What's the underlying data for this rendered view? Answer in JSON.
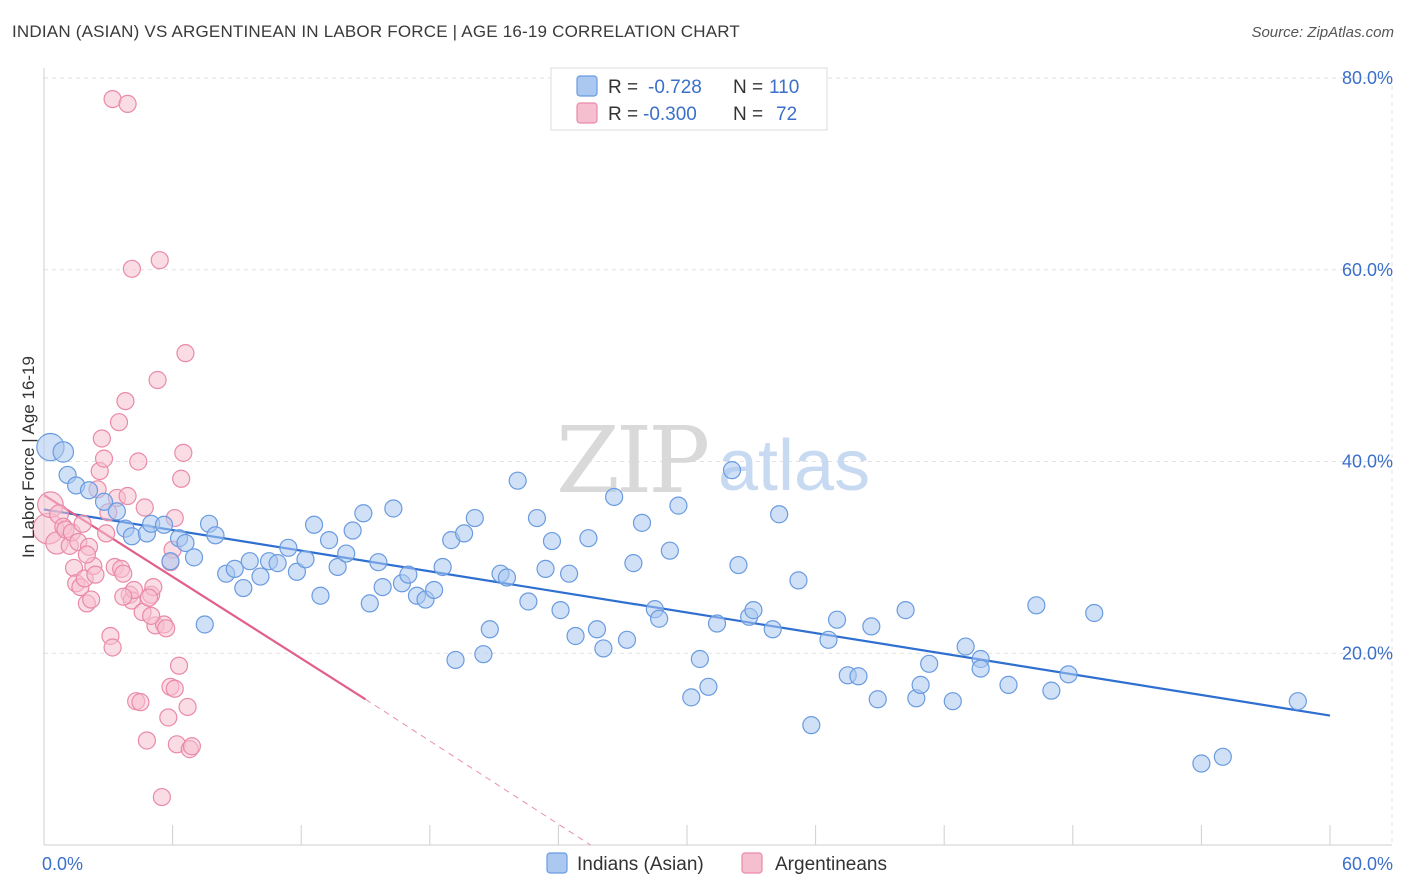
{
  "header": {
    "title": "INDIAN (ASIAN) VS ARGENTINEAN IN LABOR FORCE | AGE 16-19 CORRELATION CHART",
    "source": "Source: ZipAtlas.com"
  },
  "watermark": {
    "zip": "ZIP",
    "atlas": "atlas"
  },
  "chart_data": {
    "type": "scatter",
    "title": "INDIAN (ASIAN) VS ARGENTINEAN IN LABOR FORCE | AGE 16-19 CORRELATION CHART",
    "xlabel": "",
    "ylabel": "In Labor Force | Age 16-19",
    "xlim": [
      0,
      60
    ],
    "ylim": [
      0,
      80
    ],
    "x_tick_labels": [
      "0.0%",
      "60.0%"
    ],
    "y_ticks": [
      20,
      40,
      60,
      80
    ],
    "y_tick_labels": [
      "20.0%",
      "40.0%",
      "60.0%",
      "80.0%"
    ],
    "grid": true,
    "legend": {
      "placement": "top-center",
      "entries": [
        {
          "r_label": "R = ",
          "r_value": "-0.728",
          "n_label": "N = ",
          "n_value": "110"
        },
        {
          "r_label": "R = ",
          "r_value": "-0.300",
          "n_label": "N = ",
          "n_value": " 72"
        }
      ]
    },
    "bottom_legend": [
      "Indians (Asian)",
      "Argentineans"
    ],
    "colors": {
      "indians": "#6a9be0",
      "indians_fill": "#aac8f0",
      "indians_line": "#2f6fd0",
      "argentineans": "#ea8aa8",
      "argentineans_fill": "#f5bfd0",
      "argentineans_line": "#e0608a",
      "axis_text": "#3b6fc9"
    },
    "series": [
      {
        "name": "Indians (Asian)",
        "trend": {
          "x": [
            0.0,
            60.0
          ],
          "y": [
            35.0,
            13.5
          ]
        },
        "points": [
          [
            0.3,
            41.5,
            1.6
          ],
          [
            0.9,
            41.0,
            1.2
          ],
          [
            1.1,
            38.6,
            1
          ],
          [
            1.5,
            37.5,
            1
          ],
          [
            2.1,
            37.0,
            1
          ],
          [
            2.8,
            35.8,
            1
          ],
          [
            3.4,
            34.8,
            1
          ],
          [
            3.8,
            33.0,
            1
          ],
          [
            4.1,
            32.2,
            1
          ],
          [
            4.8,
            32.5,
            1
          ],
          [
            5.0,
            33.5,
            1
          ],
          [
            5.6,
            33.4,
            1
          ],
          [
            5.9,
            29.6,
            1
          ],
          [
            6.3,
            32.0,
            1
          ],
          [
            6.6,
            31.5,
            1
          ],
          [
            7.0,
            30.0,
            1
          ],
          [
            7.5,
            23.0,
            1
          ],
          [
            7.7,
            33.5,
            1
          ],
          [
            8.0,
            32.3,
            1
          ],
          [
            8.5,
            28.3,
            1
          ],
          [
            8.9,
            28.8,
            1
          ],
          [
            9.3,
            26.8,
            1
          ],
          [
            9.6,
            29.6,
            1
          ],
          [
            10.1,
            28.0,
            1
          ],
          [
            10.5,
            29.6,
            1
          ],
          [
            10.9,
            29.4,
            1
          ],
          [
            11.4,
            31.0,
            1
          ],
          [
            11.8,
            28.5,
            1
          ],
          [
            12.2,
            29.8,
            1
          ],
          [
            12.6,
            33.4,
            1
          ],
          [
            12.9,
            26.0,
            1
          ],
          [
            13.3,
            31.8,
            1
          ],
          [
            13.7,
            29.0,
            1
          ],
          [
            14.1,
            30.4,
            1
          ],
          [
            14.4,
            32.8,
            1
          ],
          [
            14.9,
            34.6,
            1
          ],
          [
            15.2,
            25.2,
            1
          ],
          [
            15.6,
            29.5,
            1
          ],
          [
            15.8,
            26.9,
            1
          ],
          [
            16.3,
            35.1,
            1
          ],
          [
            16.7,
            27.3,
            1
          ],
          [
            17.0,
            28.2,
            1
          ],
          [
            17.4,
            26.0,
            1
          ],
          [
            17.8,
            25.6,
            1
          ],
          [
            18.2,
            26.6,
            1
          ],
          [
            18.6,
            29.0,
            1
          ],
          [
            19.0,
            31.8,
            1
          ],
          [
            19.2,
            19.3,
            1
          ],
          [
            19.6,
            32.5,
            1
          ],
          [
            20.1,
            34.1,
            1
          ],
          [
            20.5,
            19.9,
            1
          ],
          [
            20.8,
            22.5,
            1
          ],
          [
            21.3,
            28.3,
            1
          ],
          [
            21.6,
            27.9,
            1
          ],
          [
            22.1,
            38.0,
            1
          ],
          [
            22.6,
            25.4,
            1
          ],
          [
            23.0,
            34.1,
            1
          ],
          [
            23.4,
            28.8,
            1
          ],
          [
            23.7,
            31.7,
            1
          ],
          [
            24.1,
            24.5,
            1
          ],
          [
            24.5,
            28.3,
            1
          ],
          [
            24.8,
            21.8,
            1
          ],
          [
            25.4,
            32.0,
            1
          ],
          [
            25.8,
            22.5,
            1
          ],
          [
            26.1,
            20.5,
            1
          ],
          [
            26.6,
            36.3,
            1
          ],
          [
            27.2,
            21.4,
            1
          ],
          [
            27.5,
            29.4,
            1
          ],
          [
            27.9,
            33.6,
            1
          ],
          [
            28.5,
            24.6,
            1
          ],
          [
            28.7,
            23.6,
            1
          ],
          [
            29.2,
            30.7,
            1
          ],
          [
            29.6,
            35.4,
            1
          ],
          [
            30.2,
            15.4,
            1
          ],
          [
            30.6,
            19.4,
            1
          ],
          [
            31.0,
            16.5,
            1
          ],
          [
            31.4,
            23.1,
            1
          ],
          [
            32.1,
            39.1,
            1
          ],
          [
            32.4,
            29.2,
            1
          ],
          [
            32.9,
            23.8,
            1
          ],
          [
            33.1,
            24.5,
            1
          ],
          [
            34.0,
            22.5,
            1
          ],
          [
            34.3,
            34.5,
            1
          ],
          [
            35.2,
            27.6,
            1
          ],
          [
            35.8,
            12.5,
            1
          ],
          [
            36.6,
            21.4,
            1
          ],
          [
            37.0,
            23.5,
            1
          ],
          [
            37.5,
            17.7,
            1
          ],
          [
            38.0,
            17.6,
            1
          ],
          [
            38.6,
            22.8,
            1
          ],
          [
            38.9,
            15.2,
            1
          ],
          [
            40.2,
            24.5,
            1
          ],
          [
            40.7,
            15.3,
            1
          ],
          [
            40.9,
            16.7,
            1
          ],
          [
            41.3,
            18.9,
            1
          ],
          [
            42.4,
            15.0,
            1
          ],
          [
            43.0,
            20.7,
            1
          ],
          [
            43.7,
            19.4,
            1
          ],
          [
            43.7,
            18.4,
            1
          ],
          [
            45.0,
            16.7,
            1
          ],
          [
            46.3,
            25.0,
            1
          ],
          [
            47.0,
            16.1,
            1
          ],
          [
            47.8,
            17.8,
            1
          ],
          [
            49.0,
            24.2,
            1
          ],
          [
            54.0,
            8.5,
            1
          ],
          [
            55.0,
            9.2,
            1
          ],
          [
            58.5,
            15.0,
            1
          ]
        ]
      },
      {
        "name": "Argentineans",
        "trend": {
          "x": [
            0.0,
            15.0
          ],
          "y": [
            36.5,
            15.2
          ]
        },
        "trend_dashed": {
          "x": [
            15.0,
            25.5
          ],
          "y": [
            15.2,
            0.0
          ]
        },
        "points": [
          [
            0.2,
            33.0,
            1.8
          ],
          [
            0.3,
            35.5,
            1.5
          ],
          [
            0.6,
            31.5,
            1.3
          ],
          [
            0.7,
            34.5,
            1.1
          ],
          [
            0.9,
            33.2,
            1
          ],
          [
            1.0,
            32.9,
            1
          ],
          [
            1.2,
            31.2,
            1
          ],
          [
            1.3,
            32.6,
            1
          ],
          [
            1.4,
            28.9,
            1
          ],
          [
            1.5,
            27.3,
            1
          ],
          [
            1.6,
            31.6,
            1
          ],
          [
            1.7,
            26.9,
            1
          ],
          [
            1.8,
            33.5,
            1
          ],
          [
            1.9,
            27.8,
            1
          ],
          [
            2.0,
            25.2,
            1
          ],
          [
            2.1,
            31.1,
            1
          ],
          [
            2.2,
            25.6,
            1
          ],
          [
            2.3,
            29.1,
            1
          ],
          [
            2.4,
            28.2,
            1
          ],
          [
            2.5,
            37.1,
            1
          ],
          [
            2.6,
            39.0,
            1
          ],
          [
            2.7,
            42.4,
            1
          ],
          [
            2.8,
            40.3,
            1
          ],
          [
            2.9,
            32.5,
            1
          ],
          [
            3.0,
            34.7,
            1
          ],
          [
            3.1,
            21.8,
            1
          ],
          [
            3.2,
            20.6,
            1
          ],
          [
            3.3,
            29.0,
            1
          ],
          [
            3.4,
            36.2,
            1
          ],
          [
            3.5,
            44.1,
            1
          ],
          [
            3.6,
            28.8,
            1
          ],
          [
            3.7,
            28.3,
            1
          ],
          [
            3.8,
            46.3,
            1
          ],
          [
            3.9,
            36.4,
            1
          ],
          [
            4.0,
            26.1,
            1
          ],
          [
            4.1,
            25.5,
            1
          ],
          [
            4.2,
            26.6,
            1
          ],
          [
            4.3,
            15.0,
            1
          ],
          [
            4.4,
            40.0,
            1
          ],
          [
            4.5,
            14.9,
            1
          ],
          [
            4.6,
            24.3,
            1
          ],
          [
            4.7,
            35.2,
            1
          ],
          [
            4.8,
            10.9,
            1
          ],
          [
            5.0,
            26.1,
            1
          ],
          [
            5.1,
            26.9,
            1
          ],
          [
            5.2,
            22.9,
            1
          ],
          [
            5.3,
            48.5,
            1
          ],
          [
            5.5,
            5.0,
            1
          ],
          [
            5.6,
            23.0,
            1
          ],
          [
            5.7,
            22.6,
            1
          ],
          [
            5.8,
            13.3,
            1
          ],
          [
            5.9,
            16.5,
            1
          ],
          [
            6.0,
            30.8,
            1
          ],
          [
            6.1,
            16.3,
            1
          ],
          [
            6.2,
            10.5,
            1
          ],
          [
            6.3,
            18.7,
            1
          ],
          [
            6.4,
            38.2,
            1
          ],
          [
            6.5,
            40.9,
            1
          ],
          [
            6.6,
            51.3,
            1
          ],
          [
            6.7,
            14.4,
            1
          ],
          [
            6.8,
            10.0,
            1
          ],
          [
            6.9,
            10.3,
            1
          ],
          [
            3.2,
            77.8,
            1
          ],
          [
            3.9,
            77.3,
            1
          ],
          [
            4.1,
            60.1,
            1
          ],
          [
            5.4,
            61.0,
            1
          ],
          [
            5.9,
            29.5,
            1
          ],
          [
            5.0,
            23.9,
            1
          ],
          [
            4.9,
            25.8,
            1
          ],
          [
            6.1,
            34.1,
            1
          ],
          [
            3.7,
            25.9,
            1
          ],
          [
            2.0,
            30.3,
            1
          ]
        ]
      }
    ]
  }
}
